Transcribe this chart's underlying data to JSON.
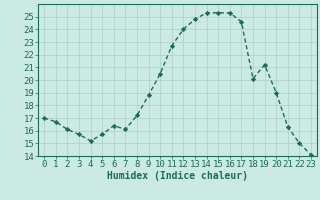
{
  "x": [
    0,
    1,
    2,
    3,
    4,
    5,
    6,
    7,
    8,
    9,
    10,
    11,
    12,
    13,
    14,
    15,
    16,
    17,
    18,
    19,
    20,
    21,
    22,
    23
  ],
  "y": [
    17.0,
    16.7,
    16.1,
    15.7,
    15.2,
    15.7,
    16.4,
    16.1,
    17.2,
    18.8,
    20.5,
    22.7,
    24.0,
    24.8,
    25.3,
    25.3,
    25.3,
    24.6,
    20.1,
    21.2,
    19.0,
    16.3,
    15.0,
    14.1
  ],
  "line_color": "#1a6b5a",
  "marker": "D",
  "marker_size": 2.2,
  "line_width": 1.0,
  "bg_color": "#cceae4",
  "grid_color": "#b0cec8",
  "xlabel": "Humidex (Indice chaleur)",
  "ylabel": "",
  "ylim": [
    14,
    26
  ],
  "xlim": [
    -0.5,
    23.5
  ],
  "yticks": [
    14,
    15,
    16,
    17,
    18,
    19,
    20,
    21,
    22,
    23,
    24,
    25
  ],
  "xticks": [
    0,
    1,
    2,
    3,
    4,
    5,
    6,
    7,
    8,
    9,
    10,
    11,
    12,
    13,
    14,
    15,
    16,
    17,
    18,
    19,
    20,
    21,
    22,
    23
  ],
  "xlabel_fontsize": 7,
  "tick_fontsize": 6.5
}
